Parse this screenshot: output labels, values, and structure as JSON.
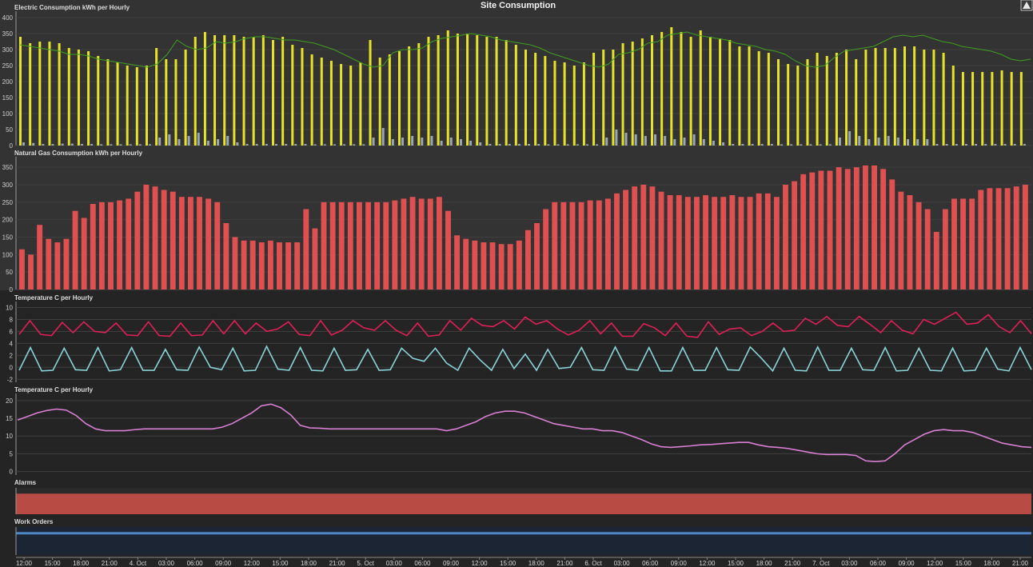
{
  "title": "Site Consumption",
  "colors": {
    "electric_bar": "#e6e22a",
    "electric_small_bar": "#9aa6b2",
    "electric_line": "#3f9f1e",
    "gas_bar": "#e05050",
    "temp_a": "#e01f57",
    "temp_b": "#89d2d6",
    "temp2": "#d97fd4",
    "alarms": "#b84c44",
    "workorders": "#4e86c6",
    "workorders_bg": "#1b2533"
  },
  "x_axis": {
    "ticks": [
      "12:00",
      "15:00",
      "18:00",
      "21:00",
      "4. Oct",
      "03:00",
      "06:00",
      "09:00",
      "12:00",
      "15:00",
      "18:00",
      "21:00",
      "5. Oct",
      "03:00",
      "06:00",
      "09:00",
      "12:00",
      "15:00",
      "18:00",
      "21:00",
      "6. Oct",
      "03:00",
      "06:00",
      "09:00",
      "12:00",
      "15:00",
      "18:00",
      "21:00",
      "7. Oct",
      "03:00",
      "06:00",
      "09:00",
      "12:00",
      "15:00",
      "18:00",
      "21:00"
    ]
  },
  "chart_data": [
    {
      "type": "bar",
      "title": "Electric Consumption kWh per Hourly",
      "ylim": [
        0,
        420
      ],
      "yticks": [
        0,
        50,
        100,
        150,
        200,
        250,
        300,
        350,
        400
      ],
      "series": [
        {
          "values": [
            340,
            320,
            325,
            325,
            320,
            305,
            300,
            295,
            280,
            270,
            260,
            250,
            245,
            250,
            305,
            270,
            270,
            300,
            340,
            355,
            345,
            345,
            345,
            340,
            340,
            345,
            330,
            340,
            315,
            305,
            285,
            275,
            265,
            255,
            250,
            260,
            330,
            275,
            285,
            295,
            310,
            320,
            340,
            345,
            360,
            350,
            350,
            345,
            340,
            340,
            330,
            315,
            300,
            290,
            280,
            265,
            260,
            250,
            260,
            290,
            300,
            300,
            320,
            325,
            335,
            345,
            355,
            370,
            355,
            340,
            360,
            340,
            335,
            330,
            310,
            310,
            295,
            290,
            270,
            255,
            250,
            270,
            290,
            280,
            290,
            300,
            270,
            300,
            305,
            305,
            305,
            310,
            310,
            300,
            300,
            290,
            250,
            230,
            230,
            230,
            230,
            235,
            230,
            230
          ]
        },
        {
          "values": [
            10,
            8,
            5,
            5,
            6,
            6,
            5,
            5,
            4,
            4,
            4,
            4,
            4,
            4,
            25,
            35,
            20,
            30,
            40,
            15,
            20,
            30,
            10,
            5,
            5,
            5,
            5,
            5,
            5,
            5,
            4,
            4,
            4,
            4,
            4,
            4,
            25,
            55,
            20,
            25,
            30,
            25,
            30,
            15,
            25,
            20,
            15,
            10,
            5,
            5,
            5,
            5,
            5,
            5,
            4,
            4,
            4,
            4,
            4,
            4,
            25,
            50,
            40,
            35,
            30,
            35,
            30,
            20,
            25,
            35,
            20,
            15,
            10,
            5,
            5,
            5,
            5,
            5,
            4,
            4,
            4,
            4,
            4,
            4,
            25,
            45,
            30,
            20,
            25,
            30,
            25,
            20,
            20,
            20,
            5,
            5,
            5,
            5,
            5,
            5,
            5,
            5,
            5,
            5
          ]
        },
        {
          "values": [
            315,
            310,
            305,
            300,
            295,
            285,
            285,
            280,
            270,
            265,
            260,
            255,
            250,
            245,
            255,
            285,
            330,
            310,
            300,
            305,
            325,
            320,
            325,
            335,
            340,
            340,
            335,
            330,
            330,
            325,
            320,
            310,
            300,
            285,
            270,
            255,
            245,
            250,
            290,
            300,
            300,
            305,
            325,
            335,
            340,
            345,
            350,
            345,
            340,
            330,
            325,
            320,
            315,
            305,
            290,
            280,
            270,
            260,
            250,
            245,
            255,
            285,
            290,
            300,
            320,
            325,
            345,
            350,
            355,
            345,
            340,
            335,
            330,
            320,
            315,
            310,
            300,
            295,
            285,
            265,
            250,
            245,
            250,
            275,
            295,
            300,
            305,
            310,
            325,
            340,
            345,
            340,
            345,
            335,
            325,
            320,
            310,
            305,
            300,
            295,
            285,
            270,
            265,
            270
          ]
        }
      ]
    },
    {
      "type": "bar",
      "title": "Natural Gas Consumption kWh per Hourly",
      "ylim": [
        0,
        380
      ],
      "yticks": [
        0,
        50,
        100,
        150,
        200,
        250,
        300,
        350
      ],
      "series": [
        {
          "values": [
            115,
            100,
            185,
            145,
            135,
            145,
            225,
            205,
            245,
            250,
            250,
            255,
            260,
            280,
            300,
            295,
            285,
            280,
            265,
            265,
            265,
            260,
            250,
            190,
            150,
            140,
            140,
            135,
            140,
            135,
            135,
            135,
            230,
            175,
            250,
            250,
            250,
            250,
            250,
            250,
            250,
            250,
            255,
            260,
            265,
            260,
            260,
            265,
            225,
            155,
            145,
            140,
            135,
            135,
            130,
            130,
            140,
            170,
            190,
            230,
            250,
            250,
            250,
            250,
            255,
            255,
            260,
            275,
            285,
            295,
            300,
            295,
            280,
            270,
            270,
            265,
            265,
            270,
            265,
            265,
            270,
            265,
            265,
            275,
            275,
            265,
            300,
            310,
            330,
            335,
            340,
            340,
            350,
            345,
            350,
            355,
            355,
            345,
            315,
            280,
            270,
            250,
            230,
            165,
            230,
            260,
            260,
            260,
            285,
            290,
            290,
            290,
            295,
            300
          ]
        }
      ]
    },
    {
      "type": "line",
      "title": "Temperature C per Hourly",
      "ylim": [
        -2.5,
        11
      ],
      "yticks": [
        -2,
        0,
        2,
        4,
        6,
        8,
        10
      ],
      "series": [
        {
          "values": [
            5.5,
            7.8,
            5.5,
            5.3,
            7.5,
            5.8,
            7.6,
            6,
            5.8,
            7.4,
            5.4,
            5.3,
            7.6,
            5.3,
            5.2,
            7.4,
            5.3,
            5.4,
            7.8,
            5.6,
            7.8,
            5.6,
            7.4,
            6,
            6.4,
            7.6,
            5.5,
            5.3,
            7.8,
            5.4,
            6.2,
            7.8,
            6.6,
            6.2,
            7.8,
            6.2,
            5.3,
            7.4,
            5.2,
            5.4,
            7.8,
            6.2,
            8.2,
            7,
            6.8,
            7.8,
            6.4,
            8.4,
            7.2,
            7.8,
            6.4,
            5.4,
            6.2,
            7.8,
            5.6,
            7.4,
            5.2,
            5.2,
            7.3,
            6.6,
            5.3,
            7.4,
            5.2,
            5,
            7.6,
            5.5,
            6.4,
            6.6,
            5.3,
            6,
            7.4,
            6,
            6.2,
            8.2,
            7.2,
            8.5,
            7,
            6.8,
            8.5,
            7.2,
            5.8,
            7.8,
            6.2,
            5.6,
            8,
            7.2,
            8.2,
            9.2,
            7.2,
            7.4,
            8.8,
            6.8,
            5.8,
            7.8,
            5.6
          ]
        },
        {
          "values": [
            -0.5,
            3.3,
            -0.6,
            -0.5,
            3.2,
            -0.4,
            -0.5,
            3.3,
            -0.6,
            -0.4,
            3.3,
            -0.5,
            -0.5,
            3,
            -0.4,
            -0.5,
            3.4,
            0,
            -0.4,
            3.2,
            -0.6,
            -0.5,
            3.5,
            -0.3,
            -0.5,
            3.3,
            -0.5,
            -0.6,
            3.2,
            -0.5,
            -0.4,
            3,
            -0.5,
            -0.4,
            3.2,
            1.5,
            1,
            3.2,
            0.7,
            -0.5,
            3.2,
            1.2,
            -0.5,
            3,
            -0.2,
            2.2,
            -0.5,
            3,
            -0.2,
            0,
            3.3,
            -0.4,
            -0.5,
            3.4,
            -0.3,
            -0.5,
            3.3,
            -0.6,
            -0.6,
            3.3,
            -0.5,
            -0.5,
            3.3,
            -0.4,
            -0.5,
            3.4,
            1.5,
            -0.6,
            3.2,
            -0.5,
            -0.6,
            3.4,
            -0.5,
            -0.5,
            3.2,
            -0.4,
            -0.5,
            3.3,
            -0.6,
            -0.5,
            3.2,
            -0.5,
            -0.6,
            3.2,
            -0.6,
            -0.5,
            3.2,
            -0.3,
            -0.6,
            3.3,
            -0.4
          ]
        }
      ]
    },
    {
      "type": "line",
      "title": "Temperature C per Hourly",
      "ylim": [
        -1,
        22
      ],
      "yticks": [
        0,
        5,
        10,
        15,
        20
      ],
      "series": [
        {
          "values": [
            14.5,
            15.5,
            16.5,
            17.2,
            17.6,
            17.3,
            15.8,
            13.5,
            12,
            11.5,
            11.5,
            11.5,
            11.8,
            12,
            12,
            12,
            12,
            12,
            12,
            12,
            12,
            12.5,
            13.5,
            15,
            16.5,
            18.5,
            19,
            18,
            16,
            13,
            12.3,
            12.2,
            12,
            12,
            12,
            12,
            12,
            12,
            12,
            12,
            12,
            12,
            12,
            12,
            11.5,
            12,
            13,
            14,
            15.5,
            16.5,
            17,
            17,
            16.5,
            15.5,
            14.5,
            13.5,
            13,
            12.5,
            12,
            12,
            11.5,
            11.5,
            11,
            10,
            9,
            7.8,
            7,
            6.8,
            7,
            7.2,
            7.5,
            7.6,
            7.8,
            8,
            8.2,
            8.2,
            7.5,
            7,
            6.8,
            6.5,
            6,
            5.5,
            5,
            4.8,
            4.8,
            4.8,
            4.5,
            3,
            2.8,
            3,
            5,
            7.5,
            9,
            10.5,
            11.5,
            11.8,
            11.5,
            11.5,
            11,
            10,
            9,
            8,
            7.5,
            7,
            6.8
          ]
        }
      ]
    }
  ],
  "alarms": {
    "title": "Alarms",
    "level": 0.78
  },
  "work_orders": {
    "title": "Work Orders",
    "level": 0.82
  }
}
